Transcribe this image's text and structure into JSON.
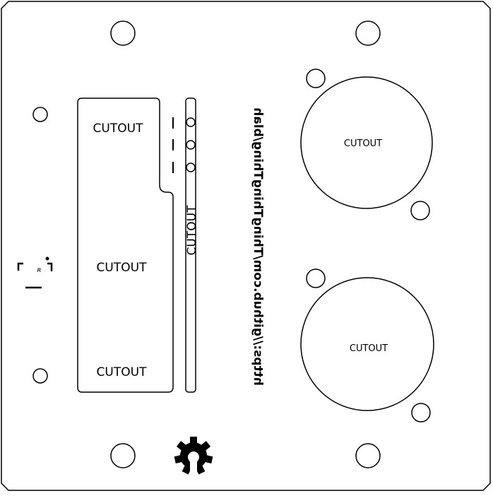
{
  "panel": {
    "labels": {
      "slot_top": "CUTOUT",
      "slot_middle": "CUTOUT",
      "slot_bottom": "CUTOUT",
      "narrow_slot": "CUTOUT",
      "xlr_top": "CUTOUT",
      "xlr_bottom": "CUTOUT"
    },
    "url_text": "https://github.com/ThingThingThing/blah",
    "logo_mark": "ʀ",
    "icons": {
      "logo": "open-source-hardware-gear-icon",
      "symbol": "bracket-symbol-icon"
    },
    "colors": {
      "stroke": "#000000",
      "background": "#ffffff"
    }
  }
}
